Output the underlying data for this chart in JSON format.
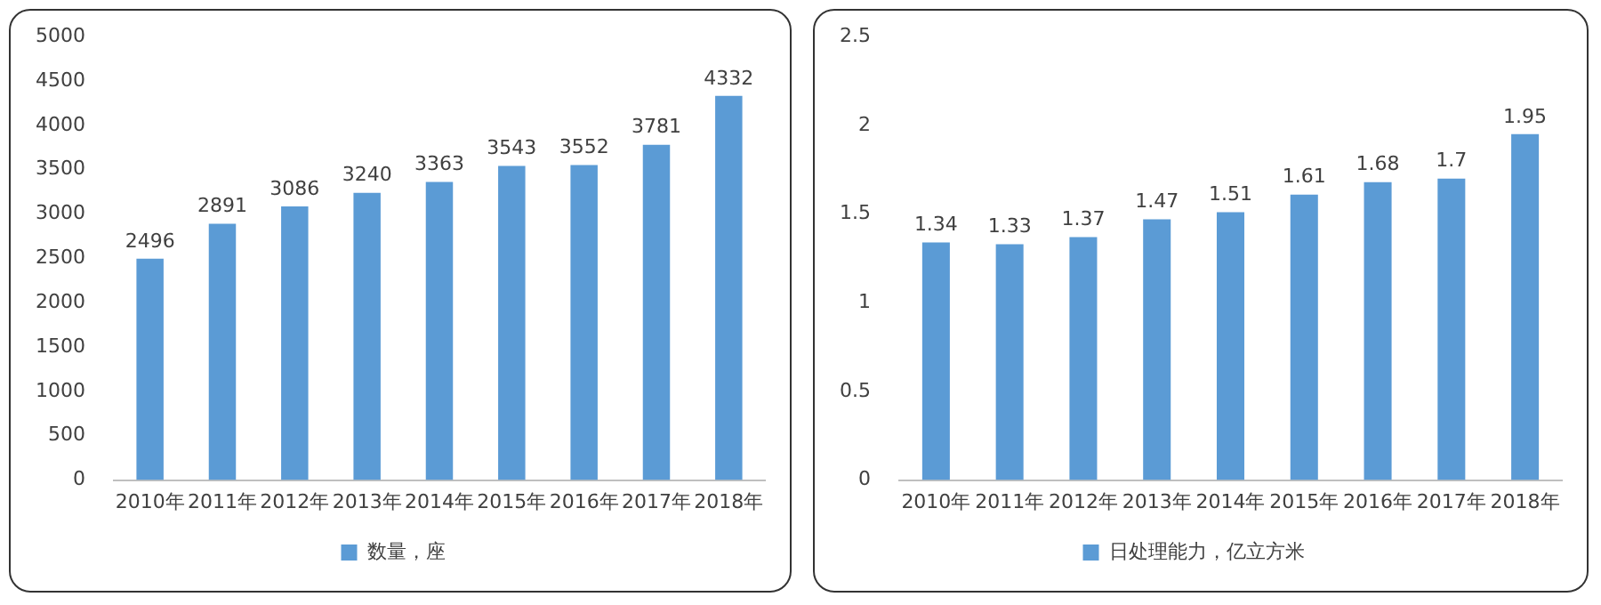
{
  "chart_data": [
    {
      "type": "bar",
      "categories": [
        "2010年",
        "2011年",
        "2012年",
        "2013年",
        "2014年",
        "2015年",
        "2016年",
        "2017年",
        "2018年"
      ],
      "series": [
        {
          "name": "数量，座",
          "color": "#5b9bd5",
          "values": [
            2496,
            2891,
            3086,
            3240,
            3363,
            3543,
            3552,
            3781,
            4332
          ]
        }
      ],
      "ylim": [
        0,
        5000
      ],
      "yticks": [
        0,
        500,
        1000,
        1500,
        2000,
        2500,
        3000,
        3500,
        4000,
        4500,
        5000
      ],
      "data_labels": true,
      "legend": "bottom"
    },
    {
      "type": "bar",
      "categories": [
        "2010年",
        "2011年",
        "2012年",
        "2013年",
        "2014年",
        "2015年",
        "2016年",
        "2017年",
        "2018年"
      ],
      "series": [
        {
          "name": "日处理能力，亿立方米",
          "color": "#5b9bd5",
          "values": [
            1.34,
            1.33,
            1.37,
            1.47,
            1.51,
            1.61,
            1.68,
            1.7,
            1.95
          ]
        }
      ],
      "ylim": [
        0,
        2.5
      ],
      "yticks": [
        0,
        {
          "value": 0.5,
          "label": "0.5"
        },
        1,
        {
          "value": 1.5,
          "label": "1.5"
        },
        2,
        {
          "value": 2.5,
          "label": "2.5"
        }
      ],
      "data_labels": true,
      "legend": "bottom"
    }
  ]
}
